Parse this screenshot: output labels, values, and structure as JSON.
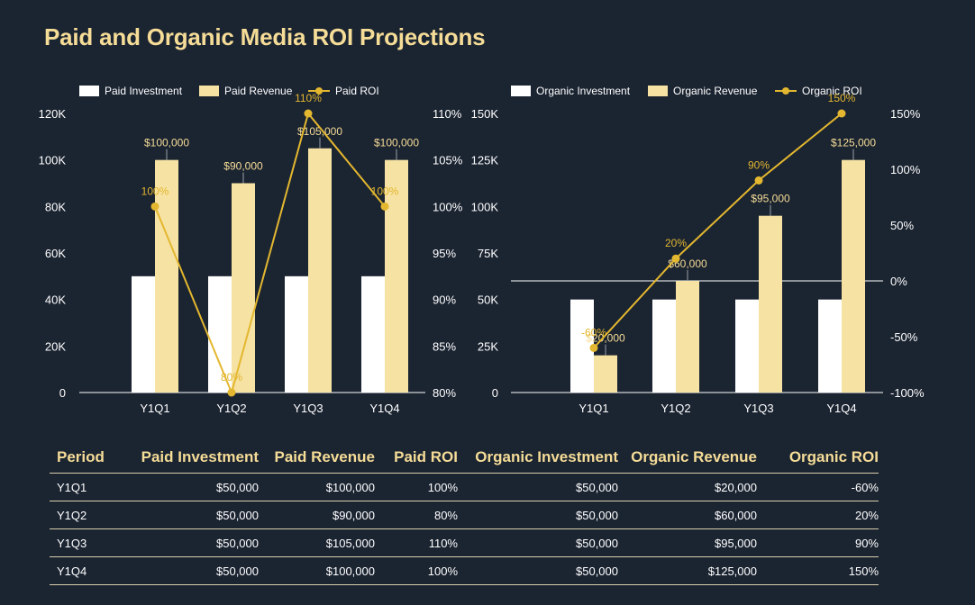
{
  "title": "Paid and Organic Media ROI Projections",
  "colors": {
    "background": "#1b2431",
    "investment": "#ffffff",
    "revenue": "#f6e2a3",
    "roi_line": "#e3b72f",
    "title": "#f5dc97"
  },
  "chart_data": [
    {
      "type": "bar",
      "categories": [
        "Y1Q1",
        "Y1Q2",
        "Y1Q3",
        "Y1Q4"
      ],
      "series": [
        {
          "name": "Paid Investment",
          "type": "bar",
          "axis": "left",
          "values": [
            50000,
            50000,
            50000,
            50000
          ]
        },
        {
          "name": "Paid Revenue",
          "type": "bar",
          "axis": "left",
          "values": [
            100000,
            90000,
            105000,
            100000
          ],
          "labels": [
            "$100,000",
            "$90,000",
            "$105,000",
            "$100,000"
          ]
        },
        {
          "name": "Paid ROI",
          "type": "line",
          "axis": "right",
          "values": [
            100,
            80,
            110,
            100
          ],
          "labels": [
            "100%",
            "80%",
            "110%",
            "100%"
          ]
        }
      ],
      "left_axis": {
        "min": 0,
        "max": 120000,
        "ticks": [
          "0",
          "20K",
          "40K",
          "60K",
          "80K",
          "100K",
          "120K"
        ]
      },
      "right_axis": {
        "min": 80,
        "max": 110,
        "ticks": [
          "80%",
          "85%",
          "90%",
          "95%",
          "100%",
          "105%",
          "110%"
        ]
      },
      "legend_position": "top"
    },
    {
      "type": "bar",
      "categories": [
        "Y1Q1",
        "Y1Q2",
        "Y1Q3",
        "Y1Q4"
      ],
      "series": [
        {
          "name": "Organic Investment",
          "type": "bar",
          "axis": "left",
          "values": [
            50000,
            50000,
            50000,
            50000
          ]
        },
        {
          "name": "Organic Revenue",
          "type": "bar",
          "axis": "left",
          "values": [
            20000,
            60000,
            95000,
            125000
          ],
          "labels": [
            "$20,000",
            "$60,000",
            "$95,000",
            "$125,000"
          ]
        },
        {
          "name": "Organic ROI",
          "type": "line",
          "axis": "right",
          "values": [
            -60,
            20,
            90,
            150
          ],
          "labels": [
            "-60%",
            "20%",
            "90%",
            "150%"
          ]
        }
      ],
      "left_axis": {
        "min": 0,
        "max": 150000,
        "ticks": [
          "0",
          "25K",
          "50K",
          "75K",
          "100K",
          "125K",
          "150K"
        ]
      },
      "right_axis": {
        "min": -100,
        "max": 150,
        "ticks": [
          "-100%",
          "-50%",
          "0%",
          "50%",
          "100%",
          "150%"
        ]
      },
      "legend_position": "top"
    }
  ],
  "table": {
    "headers": [
      "Period",
      "Paid Investment",
      "Paid Revenue",
      "Paid ROI",
      "Organic Investment",
      "Organic Revenue",
      "Organic ROI"
    ],
    "rows": [
      [
        "Y1Q1",
        "$50,000",
        "$100,000",
        "100%",
        "$50,000",
        "$20,000",
        "-60%"
      ],
      [
        "Y1Q2",
        "$50,000",
        "$90,000",
        "80%",
        "$50,000",
        "$60,000",
        "20%"
      ],
      [
        "Y1Q3",
        "$50,000",
        "$105,000",
        "110%",
        "$50,000",
        "$95,000",
        "90%"
      ],
      [
        "Y1Q4",
        "$50,000",
        "$100,000",
        "100%",
        "$50,000",
        "$125,000",
        "150%"
      ]
    ]
  }
}
